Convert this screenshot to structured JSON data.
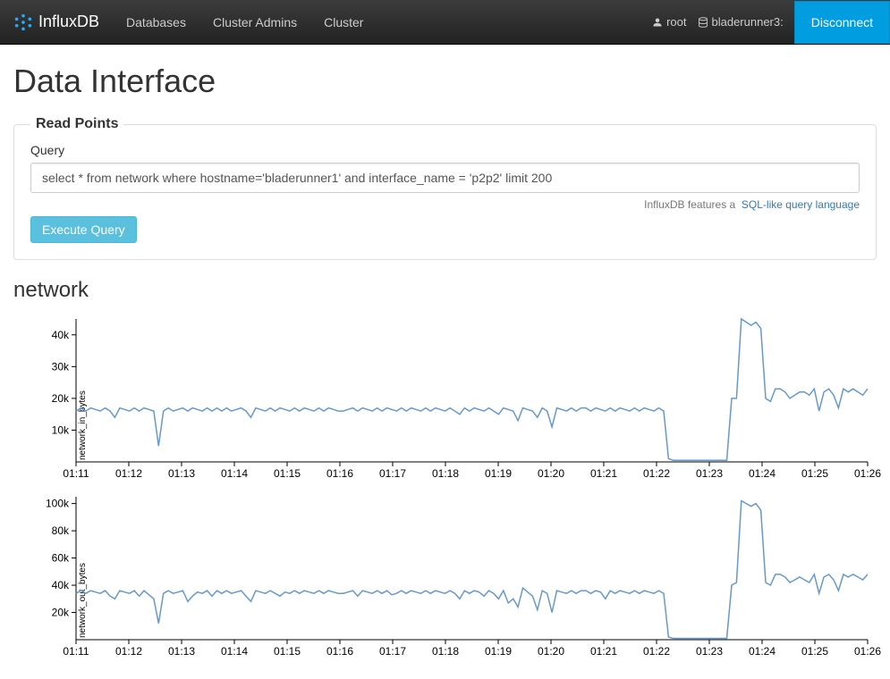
{
  "navbar": {
    "brand": "InfluxDB",
    "items": [
      "Databases",
      "Cluster Admins",
      "Cluster"
    ],
    "user": "root",
    "host": "bladerunner3:",
    "disconnect": "Disconnect"
  },
  "page": {
    "title": "Data Interface",
    "fieldset_legend": "Read Points",
    "query_label": "Query",
    "query_value": "select * from network where hostname='bladerunner1' and interface_name = 'p2p2' limit 200",
    "help_text": "InfluxDB features a",
    "help_link": "SQL-like query language",
    "execute_label": "Execute Query",
    "result_heading": "network"
  },
  "charts": {
    "x_labels": [
      "01:11",
      "01:12",
      "01:13",
      "01:14",
      "01:15",
      "01:16",
      "01:17",
      "01:18",
      "01:19",
      "01:20",
      "01:21",
      "01:22",
      "01:23",
      "01:24",
      "01:25",
      "01:26"
    ],
    "series": [
      {
        "type": "line",
        "ylabel": "network_in_bytes",
        "ylim": [
          0,
          45000
        ],
        "yticks": [
          10000,
          20000,
          30000,
          40000
        ],
        "ytick_labels": [
          "10k",
          "20k",
          "30k",
          "40k"
        ],
        "line_color": "#6699cc",
        "bg_color": "#ffffff",
        "values": [
          16000,
          17000,
          16000,
          17000,
          16500,
          16000,
          17000,
          16000,
          14000,
          17000,
          16500,
          16000,
          17000,
          16000,
          17000,
          16500,
          16000,
          5000,
          16000,
          17000,
          16000,
          16500,
          17000,
          16000,
          17000,
          16500,
          16000,
          17000,
          16000,
          17000,
          16000,
          17000,
          16000,
          16500,
          17000,
          16000,
          14000,
          17000,
          16500,
          16000,
          17000,
          16000,
          17000,
          16500,
          16000,
          17000,
          16000,
          17000,
          16500,
          16000,
          17000,
          16000,
          17000,
          16500,
          16000,
          16000,
          16500,
          17000,
          16000,
          17000,
          16500,
          16000,
          17000,
          16000,
          17000,
          16500,
          16000,
          17000,
          16000,
          17000,
          16500,
          16000,
          17000,
          16000,
          17000,
          16500,
          16000,
          17000,
          16000,
          15000,
          17000,
          16000,
          17000,
          16500,
          16000,
          17000,
          16000,
          15000,
          17000,
          16500,
          16000,
          13000,
          17000,
          16500,
          16000,
          14000,
          17000,
          16000,
          11000,
          17000,
          16500,
          16000,
          17000,
          16000,
          17000,
          17000,
          16000,
          17000,
          16500,
          16000,
          17000,
          16000,
          17000,
          16500,
          16000,
          17000,
          16000,
          17000,
          16500,
          16000,
          17000,
          16000,
          1000,
          500,
          500,
          500,
          500,
          500,
          500,
          500,
          500,
          500,
          500,
          500,
          500,
          20000,
          20000,
          45000,
          44000,
          43000,
          44000,
          42000,
          20000,
          19000,
          23000,
          23000,
          22000,
          20000,
          21000,
          22000,
          22000,
          21000,
          23000,
          16000,
          22000,
          23000,
          21000,
          17000,
          23000,
          22000,
          23000,
          22000,
          21000,
          23000
        ]
      },
      {
        "type": "line",
        "ylabel": "network_out_bytes",
        "ylim": [
          0,
          105000
        ],
        "yticks": [
          20000,
          40000,
          60000,
          80000,
          100000
        ],
        "ytick_labels": [
          "20k",
          "40k",
          "60k",
          "80k",
          "100k"
        ],
        "line_color": "#6699cc",
        "bg_color": "#ffffff",
        "values": [
          34000,
          36000,
          34000,
          36000,
          35000,
          34000,
          36000,
          32000,
          30000,
          36000,
          35000,
          34000,
          36000,
          32000,
          36000,
          33000,
          30000,
          12000,
          34000,
          36000,
          34000,
          35000,
          36000,
          28000,
          32000,
          35000,
          34000,
          36000,
          32000,
          36000,
          34000,
          36000,
          34000,
          35000,
          36000,
          32000,
          28000,
          36000,
          35000,
          34000,
          36000,
          34000,
          32000,
          35000,
          34000,
          36000,
          34000,
          36000,
          35000,
          34000,
          36000,
          34000,
          36000,
          35000,
          34000,
          34000,
          35000,
          36000,
          32000,
          36000,
          35000,
          34000,
          36000,
          34000,
          36000,
          33000,
          34000,
          36000,
          34000,
          36000,
          35000,
          34000,
          36000,
          34000,
          36000,
          35000,
          34000,
          36000,
          34000,
          30000,
          36000,
          34000,
          36000,
          35000,
          32000,
          36000,
          34000,
          30000,
          36000,
          27000,
          30000,
          24000,
          38000,
          35000,
          32000,
          22000,
          36000,
          34000,
          20000,
          36000,
          35000,
          34000,
          36000,
          34000,
          36000,
          36000,
          34000,
          36000,
          35000,
          30000,
          36000,
          34000,
          36000,
          35000,
          34000,
          36000,
          34000,
          36000,
          35000,
          34000,
          36000,
          34000,
          2000,
          1000,
          1000,
          1000,
          1000,
          1000,
          1000,
          1000,
          1000,
          1000,
          1000,
          1000,
          1000,
          40000,
          42000,
          102000,
          100000,
          98000,
          100000,
          95000,
          42000,
          40000,
          48000,
          48000,
          46000,
          42000,
          44000,
          46000,
          44000,
          42000,
          48000,
          34000,
          46000,
          48000,
          44000,
          36000,
          48000,
          46000,
          48000,
          46000,
          44000,
          48000
        ]
      }
    ]
  },
  "colors": {
    "navbar_bg": "#222222",
    "btn_info": "#5bc0de",
    "btn_disconnect": "#009de0",
    "link": "#337ab7",
    "line": "#6699cc"
  }
}
